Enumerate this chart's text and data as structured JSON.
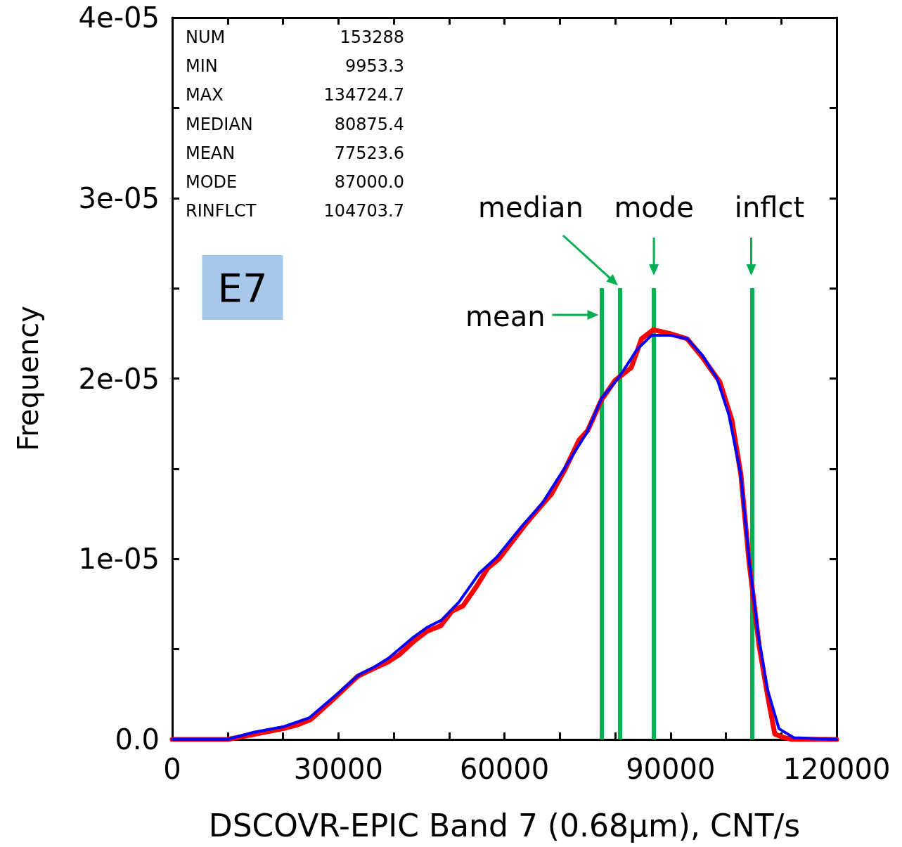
{
  "chart_data": {
    "type": "line",
    "xlabel": "DSCOVR-EPIC Band 7 (0.68μm), CNT/s",
    "ylabel": "Frequency",
    "xlim": [
      0,
      120000
    ],
    "xticks": [
      0,
      {
        "value": 10000,
        "label": null
      },
      {
        "value": 20000,
        "label": null
      },
      30000,
      {
        "value": 40000,
        "label": null
      },
      {
        "value": 50000,
        "label": null
      },
      60000,
      {
        "value": 70000,
        "label": null
      },
      {
        "value": 80000,
        "label": null
      },
      90000,
      {
        "value": 100000,
        "label": null
      },
      {
        "value": 110000,
        "label": null
      },
      120000
    ],
    "ylim": [
      0,
      4e-05
    ],
    "yticks": [
      {
        "value": 0,
        "label": "0.0"
      },
      {
        "value": 5e-06,
        "label": null
      },
      {
        "value": 1e-05,
        "label": "1e-05"
      },
      {
        "value": 1.5e-05,
        "label": null
      },
      {
        "value": 2e-05,
        "label": "2e-05"
      },
      {
        "value": 2.5e-05,
        "label": null
      },
      {
        "value": 3e-05,
        "label": "3e-05"
      },
      {
        "value": 3.5e-05,
        "label": null
      },
      {
        "value": 4e-05,
        "label": "4e-05"
      }
    ],
    "grid": false,
    "marker": "none",
    "line_style": "solid",
    "series": [
      {
        "color": "#ff0000",
        "x": [
          0,
          10000,
          15000,
          20000,
          22500,
          25000,
          29000,
          33500,
          35500,
          39000,
          41000,
          43500,
          46000,
          48500,
          50500,
          52500,
          55000,
          57000,
          59000,
          62000,
          64000,
          66500,
          68500,
          71000,
          73500,
          75000,
          77500,
          80000,
          82900,
          84760,
          86860,
          89800,
          93000,
          95700,
          98920,
          101080,
          102700,
          104200,
          106000,
          107500,
          108830,
          110500,
          112000,
          120000
        ],
        "values": [
          0,
          0,
          3e-07,
          6e-07,
          8e-07,
          1.1e-06,
          2.2e-06,
          3.5e-06,
          3.8e-06,
          4.3e-06,
          4.7e-06,
          5.4e-06,
          6e-06,
          6.3e-06,
          7.1e-06,
          7.4e-06,
          8.5e-06,
          9.5e-06,
          1e-05,
          1.12e-05,
          1.2e-05,
          1.29e-05,
          1.36e-05,
          1.5e-05,
          1.66e-05,
          1.71e-05,
          1.88e-05,
          1.99e-05,
          2.06e-05,
          2.22e-05,
          2.27e-05,
          2.25e-05,
          2.22e-05,
          2.12e-05,
          1.98e-05,
          1.77e-05,
          1.47e-05,
          9.8e-06,
          5.2e-06,
          2.5e-06,
          3e-07,
          1e-07,
          0,
          0
        ]
      },
      {
        "color": "#0000ff",
        "x": [
          0,
          9900,
          14730,
          20000,
          24760,
          28950,
          33780,
          36440,
          39050,
          43300,
          45970,
          48570,
          51750,
          55430,
          58600,
          63110,
          66860,
          70600,
          74880,
          77550,
          80760,
          83940,
          86600,
          89840,
          93050,
          95720,
          98400,
          100530,
          102670,
          104250,
          105880,
          107480,
          109590,
          112250,
          120000
        ],
        "values": [
          0,
          0,
          4e-07,
          7e-07,
          1.2e-06,
          2.3e-06,
          3.6e-06,
          4e-06,
          4.5e-06,
          5.6e-06,
          6.2e-06,
          6.6e-06,
          7.6e-06,
          9.2e-06,
          1.01e-05,
          1.18e-05,
          1.31e-05,
          1.49e-05,
          1.7e-05,
          1.89e-05,
          2.01e-05,
          2.16e-05,
          2.24e-05,
          2.24e-05,
          2.22e-05,
          2.13e-05,
          2e-05,
          1.8e-05,
          1.47e-05,
          9.8e-06,
          5.7e-06,
          2.8e-06,
          6e-07,
          1e-07,
          0
        ]
      }
    ],
    "ref_lines": [
      {
        "axis": "x",
        "value": 77523.6,
        "label": "mean",
        "color": "#00b050",
        "line_style": "solid"
      },
      {
        "axis": "x",
        "value": 80875.4,
        "label": "median",
        "color": "#00b050",
        "line_style": "solid"
      },
      {
        "axis": "x",
        "value": 87000.0,
        "label": "mode",
        "color": "#00b050",
        "line_style": "solid"
      },
      {
        "axis": "x",
        "value": 104703.7,
        "label": "inflct",
        "color": "#00b050",
        "line_style": "solid"
      }
    ],
    "annotations": [
      "NUM 153288",
      "MIN 9953.3",
      "MAX 134724.7",
      "MEDIAN 80875.4",
      "MEAN 77523.6",
      "MODE 87000.0",
      "RINFLCT 104703.7",
      "E7"
    ]
  }
}
